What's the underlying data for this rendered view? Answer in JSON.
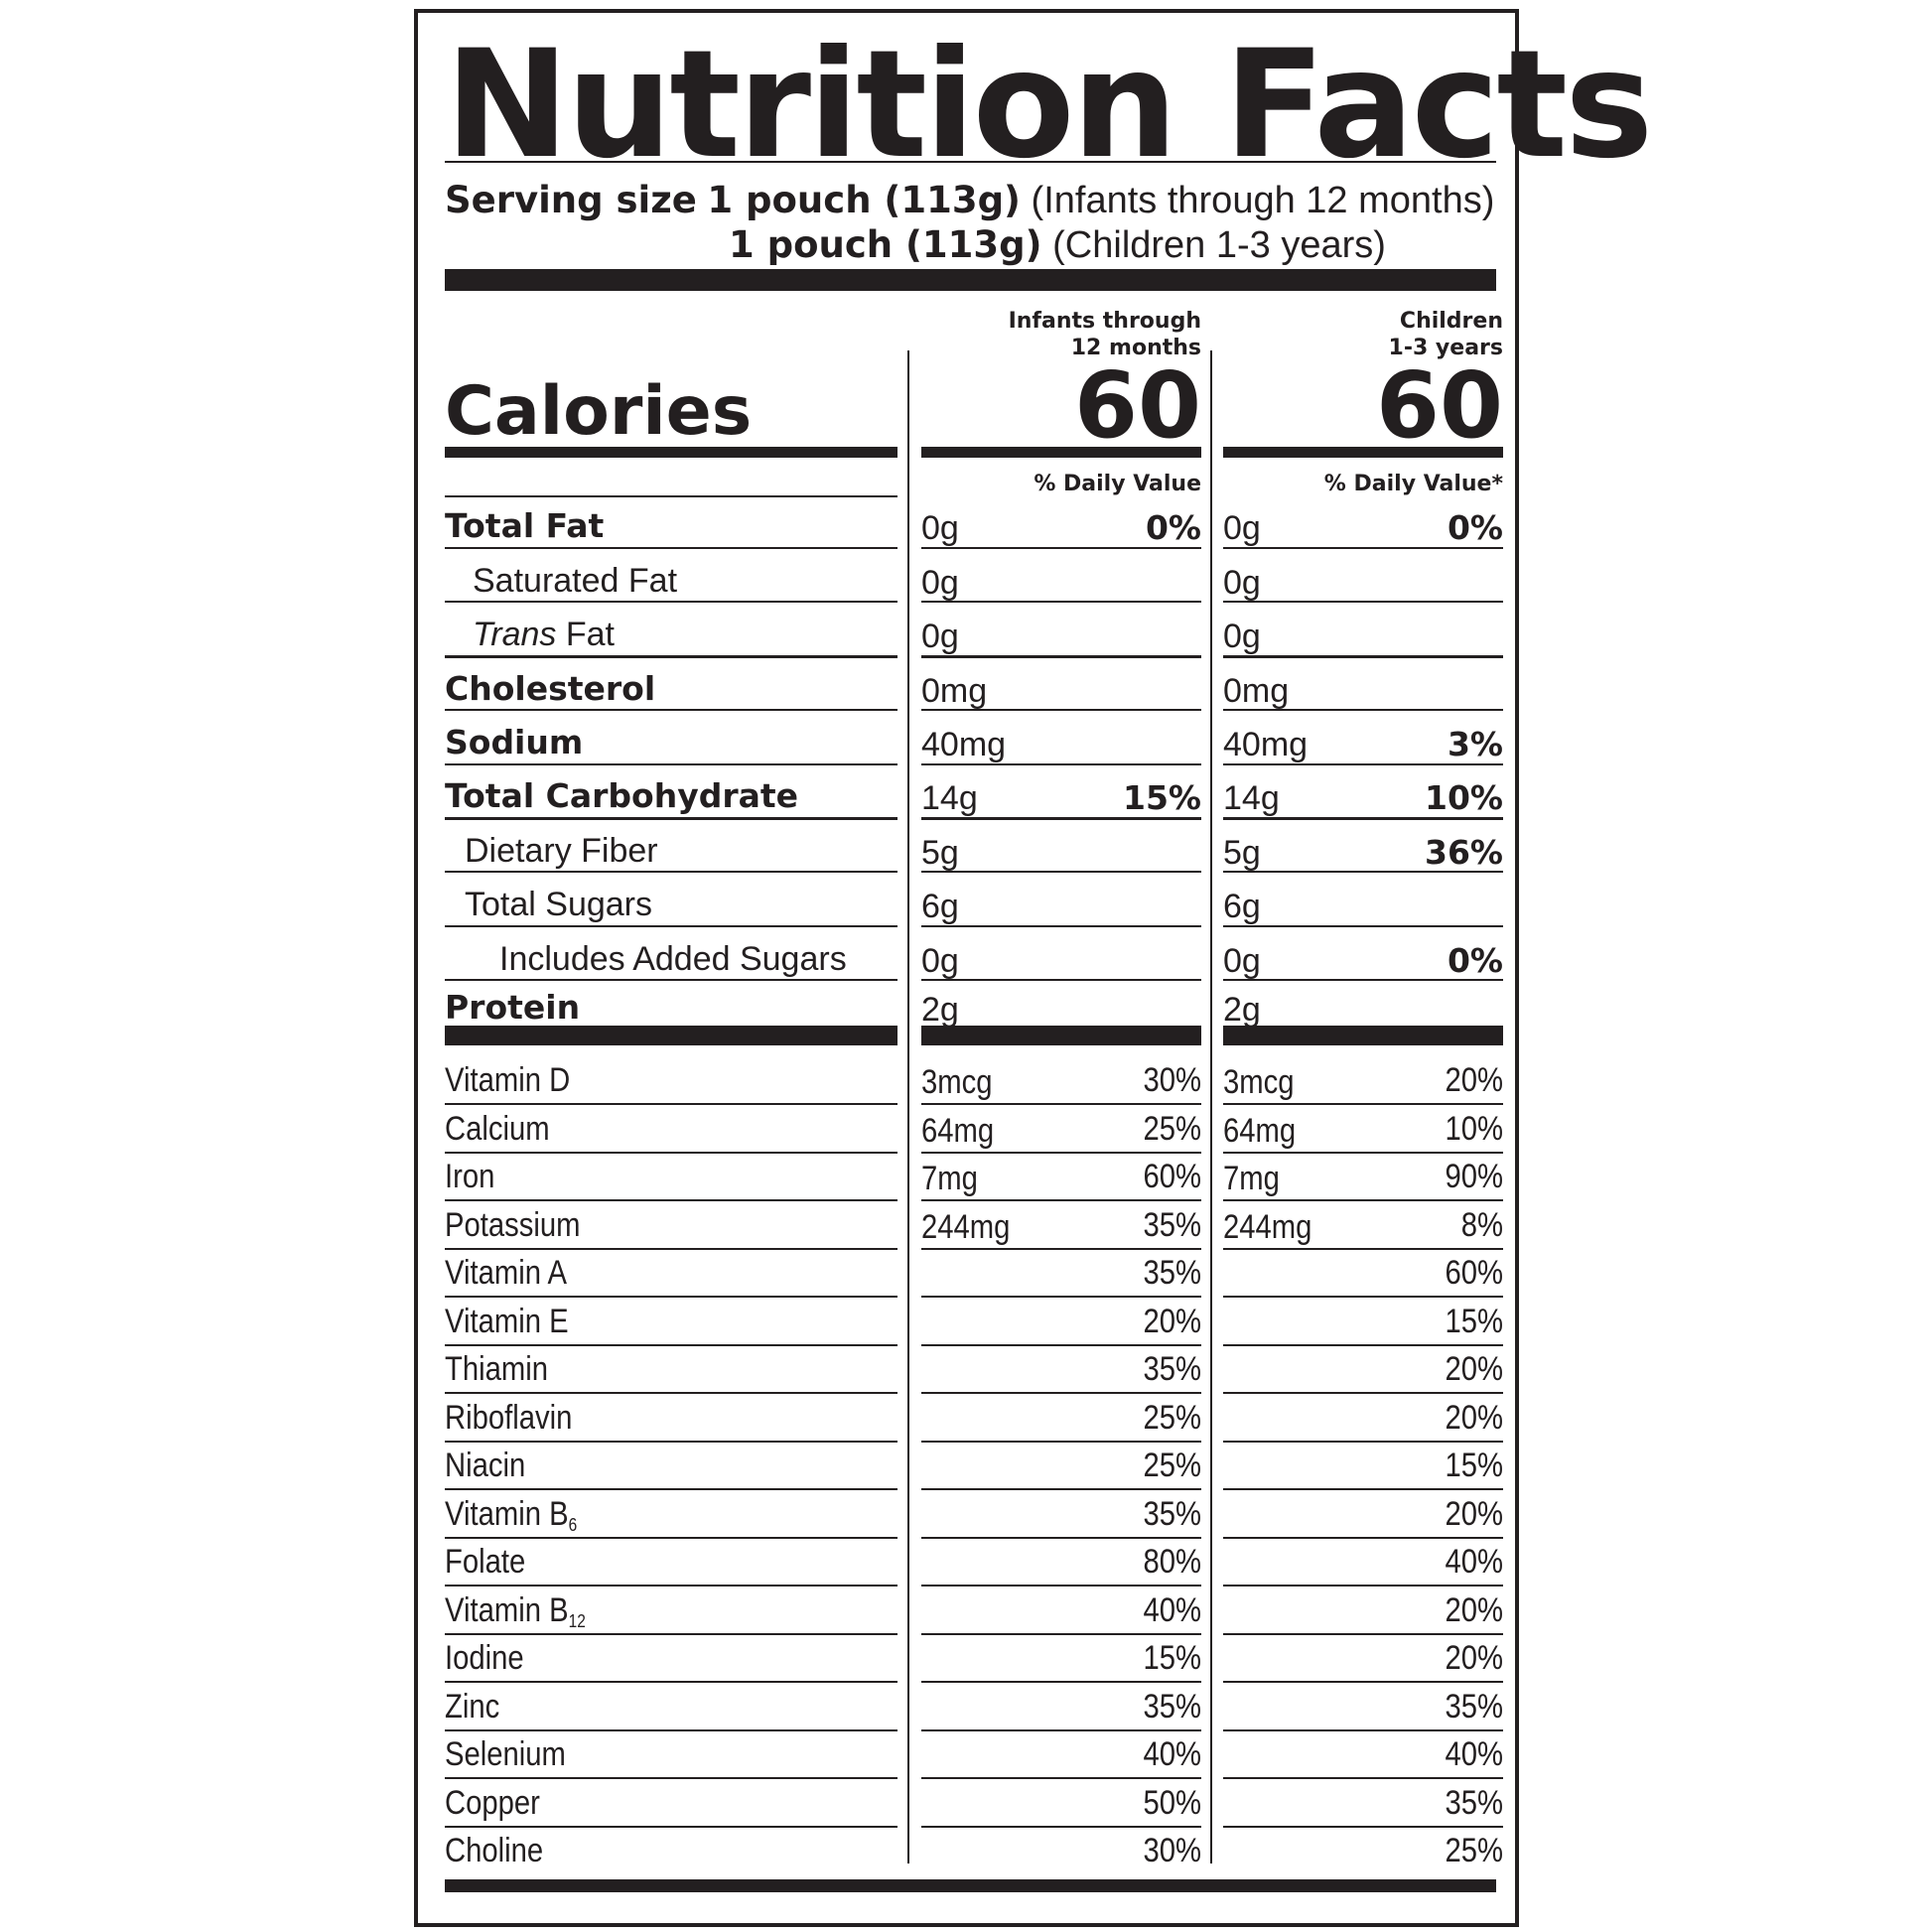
{
  "title": "Nutrition Facts",
  "serving": {
    "label": "Serving size",
    "infant_amount": "1 pouch (113g)",
    "infant_group": "(Infants through 12 months)",
    "child_amount": "1 pouch (113g)",
    "child_group": "(Children 1-3 years)"
  },
  "columns": {
    "infant_head_1": "Infants through",
    "infant_head_2": "12 months",
    "child_head_1": "Children",
    "child_head_2": "1-3 years",
    "infant_dv": "% Daily Value",
    "child_dv": "% Daily Value*"
  },
  "calories": {
    "label": "Calories",
    "infant": "60",
    "child": "60"
  },
  "nutrients": [
    {
      "label": "Total Fat",
      "infant_amount": "0g",
      "infant_pct": "0%",
      "child_amount": "0g",
      "child_pct": "0%"
    },
    {
      "label": "Saturated Fat",
      "infant_amount": "0g",
      "infant_pct": "",
      "child_amount": "0g",
      "child_pct": ""
    },
    {
      "label_italic": "Trans",
      "label_rest": " Fat",
      "infant_amount": "0g",
      "infant_pct": "",
      "child_amount": "0g",
      "child_pct": ""
    },
    {
      "label": "Cholesterol",
      "infant_amount": "0mg",
      "infant_pct": "",
      "child_amount": "0mg",
      "child_pct": ""
    },
    {
      "label": "Sodium",
      "infant_amount": "40mg",
      "infant_pct": "",
      "child_amount": "40mg",
      "child_pct": "3%"
    },
    {
      "label": "Total Carbohydrate",
      "infant_amount": "14g",
      "infant_pct": "15%",
      "child_amount": "14g",
      "child_pct": "10%"
    },
    {
      "label": "Dietary Fiber",
      "infant_amount": "5g",
      "infant_pct": "",
      "child_amount": "5g",
      "child_pct": "36%"
    },
    {
      "label": "Total Sugars",
      "infant_amount": "6g",
      "infant_pct": "",
      "child_amount": "6g",
      "child_pct": ""
    },
    {
      "label": "Includes Added Sugars",
      "infant_amount": "0g",
      "infant_pct": "",
      "child_amount": "0g",
      "child_pct": "0%"
    },
    {
      "label": "Protein",
      "infant_amount": "2g",
      "infant_pct": "",
      "child_amount": "2g",
      "child_pct": ""
    }
  ],
  "vitamins": [
    {
      "label": "Vitamin D",
      "infant_amount": "3mcg",
      "infant_pct": "30%",
      "child_amount": "3mcg",
      "child_pct": "20%"
    },
    {
      "label": "Calcium",
      "infant_amount": "64mg",
      "infant_pct": "25%",
      "child_amount": "64mg",
      "child_pct": "10%"
    },
    {
      "label": "Iron",
      "infant_amount": "7mg",
      "infant_pct": "60%",
      "child_amount": "7mg",
      "child_pct": "90%"
    },
    {
      "label": "Potassium",
      "infant_amount": "244mg",
      "infant_pct": "35%",
      "child_amount": "244mg",
      "child_pct": "8%"
    },
    {
      "label": "Vitamin A",
      "infant_amount": "",
      "infant_pct": "35%",
      "child_amount": "",
      "child_pct": "60%"
    },
    {
      "label": "Vitamin E",
      "infant_amount": "",
      "infant_pct": "20%",
      "child_amount": "",
      "child_pct": "15%"
    },
    {
      "label": "Thiamin",
      "infant_amount": "",
      "infant_pct": "35%",
      "child_amount": "",
      "child_pct": "20%"
    },
    {
      "label": "Riboflavin",
      "infant_amount": "",
      "infant_pct": "25%",
      "child_amount": "",
      "child_pct": "20%"
    },
    {
      "label": "Niacin",
      "infant_amount": "",
      "infant_pct": "25%",
      "child_amount": "",
      "child_pct": "15%"
    },
    {
      "label": "Vitamin B",
      "sub": "6",
      "infant_amount": "",
      "infant_pct": "35%",
      "child_amount": "",
      "child_pct": "20%"
    },
    {
      "label": "Folate",
      "infant_amount": "",
      "infant_pct": "80%",
      "child_amount": "",
      "child_pct": "40%"
    },
    {
      "label": "Vitamin B",
      "sub": "12",
      "infant_amount": "",
      "infant_pct": "40%",
      "child_amount": "",
      "child_pct": "20%"
    },
    {
      "label": "Iodine",
      "infant_amount": "",
      "infant_pct": "15%",
      "child_amount": "",
      "child_pct": "20%"
    },
    {
      "label": "Zinc",
      "infant_amount": "",
      "infant_pct": "35%",
      "child_amount": "",
      "child_pct": "35%"
    },
    {
      "label": "Selenium",
      "infant_amount": "",
      "infant_pct": "40%",
      "child_amount": "",
      "child_pct": "40%"
    },
    {
      "label": "Copper",
      "infant_amount": "",
      "infant_pct": "50%",
      "child_amount": "",
      "child_pct": "35%"
    },
    {
      "label": "Choline",
      "infant_amount": "",
      "infant_pct": "30%",
      "child_amount": "",
      "child_pct": "25%"
    }
  ],
  "colors": {
    "ink": "#231f20",
    "background": "#ffffff"
  }
}
